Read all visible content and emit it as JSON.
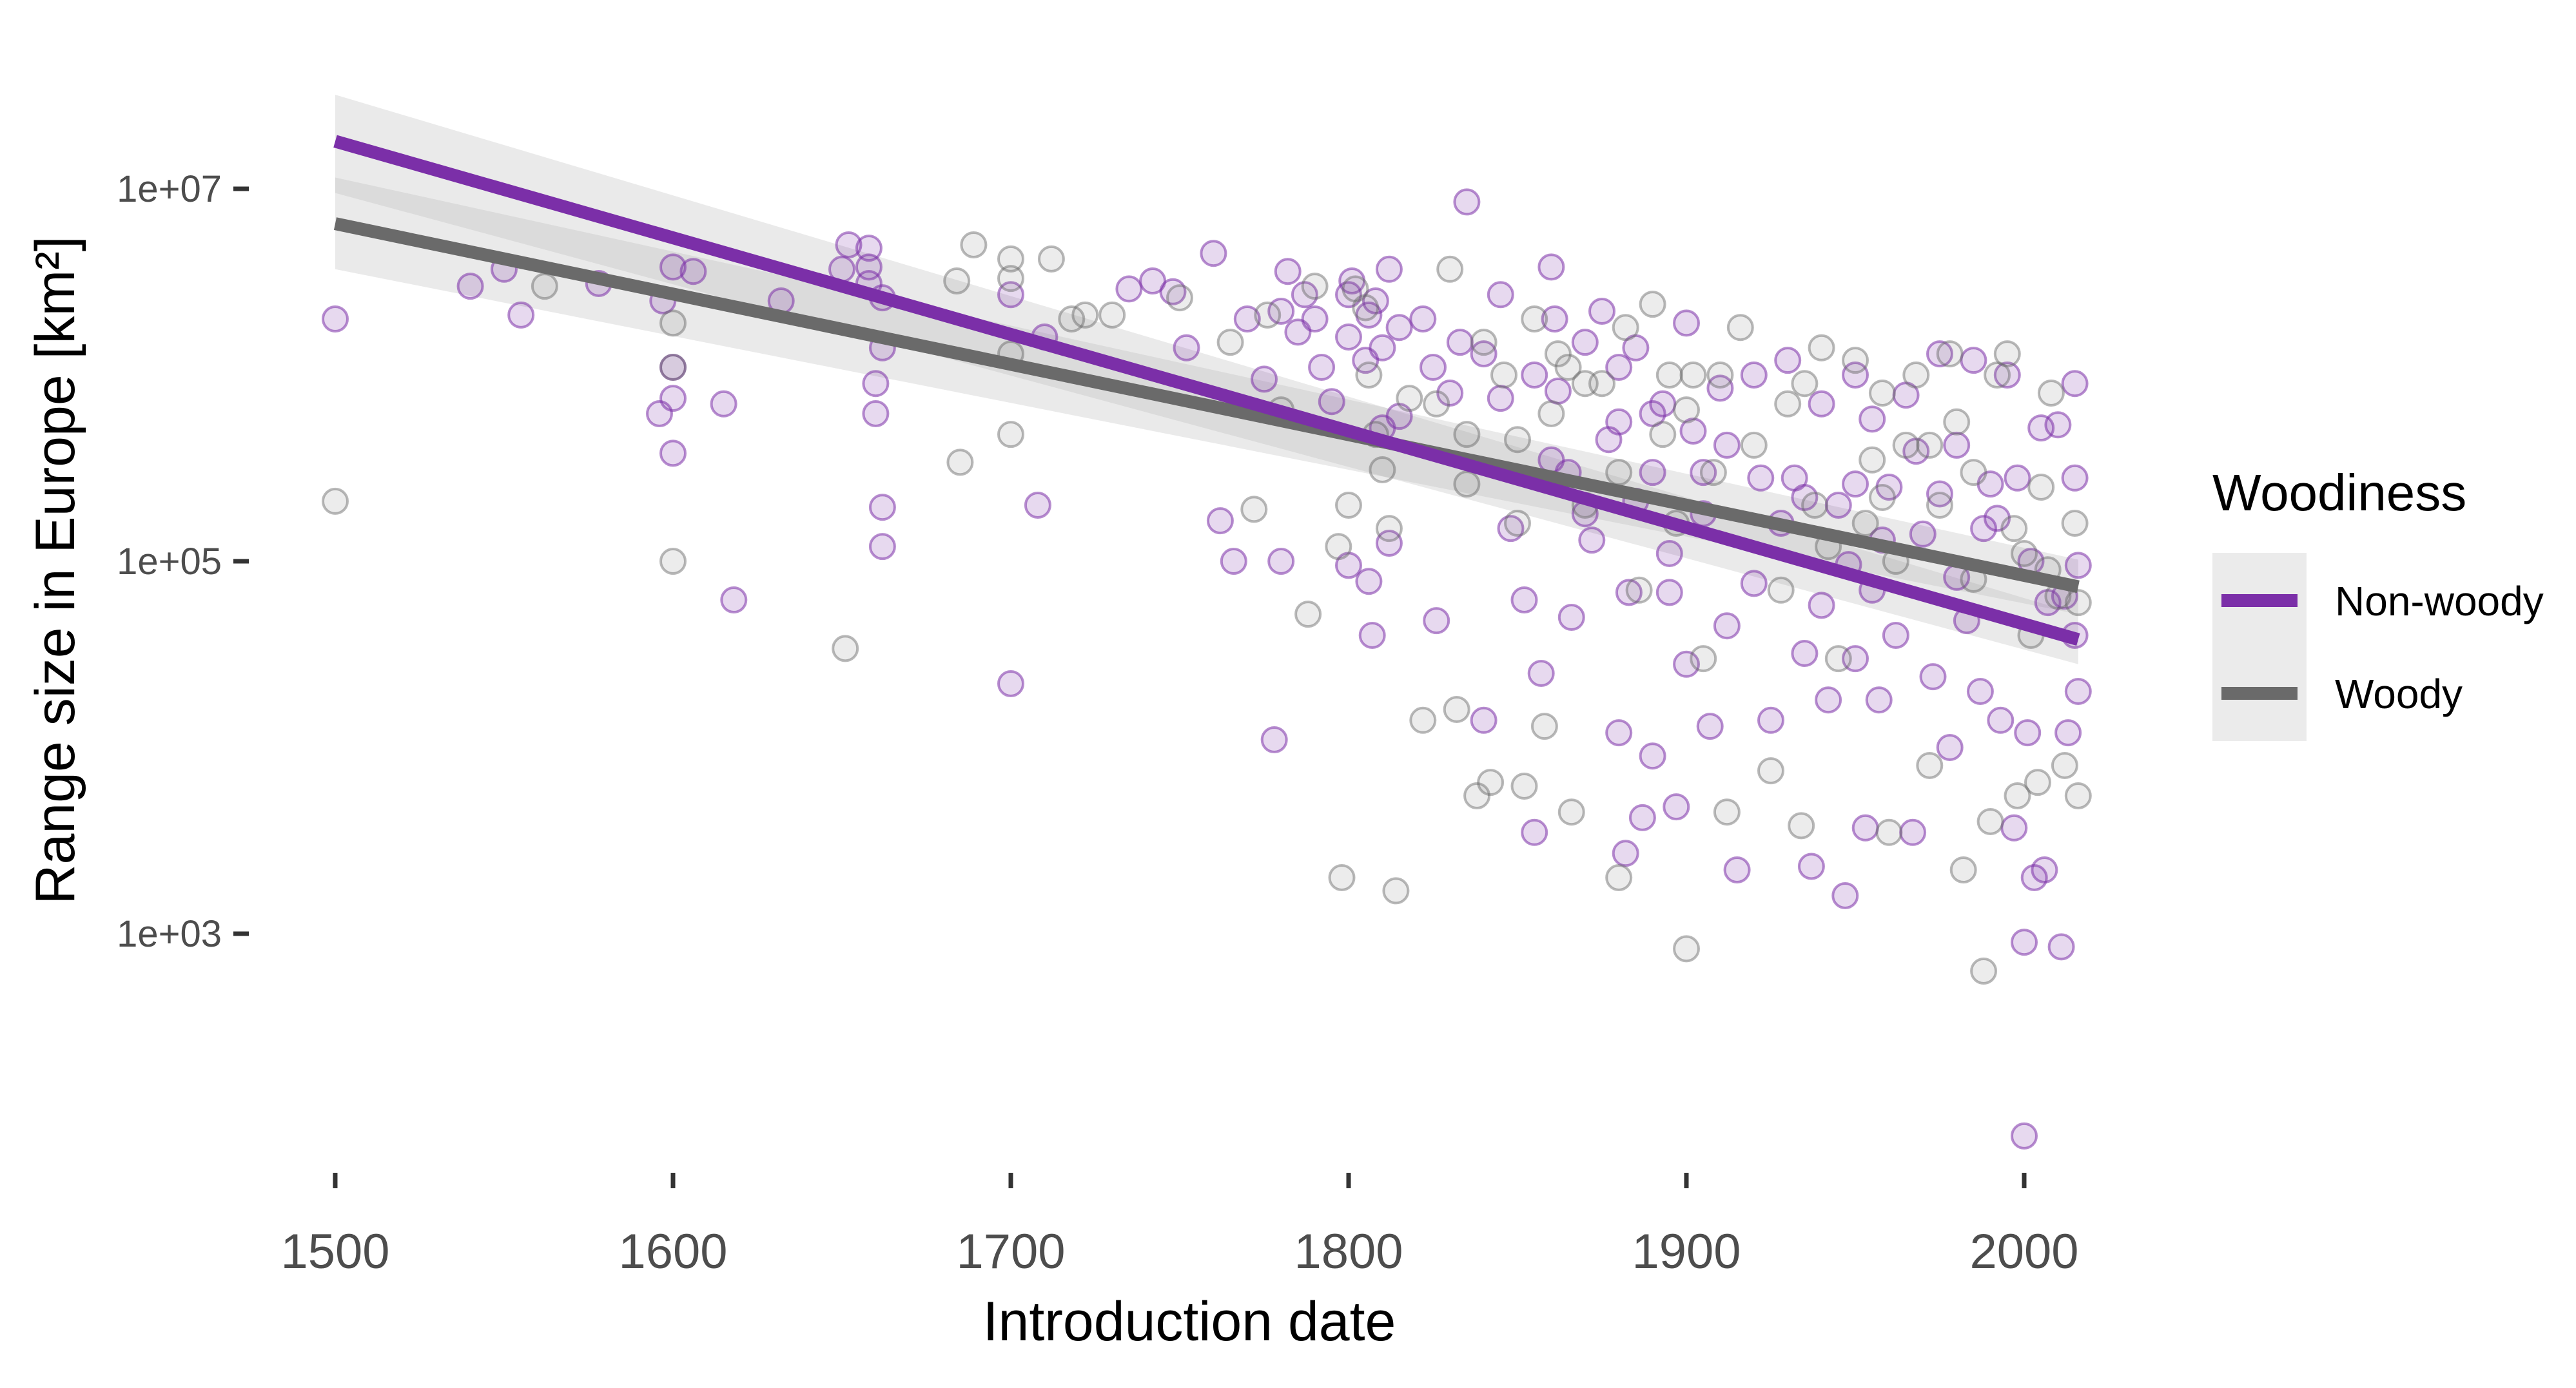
{
  "chart_data": {
    "type": "scatter",
    "title": "",
    "xlabel": "Introduction date",
    "ylabel": "Range size in Europe [km²]",
    "x_ticks": [
      1500,
      1600,
      1700,
      1800,
      1900,
      2000
    ],
    "x_tick_labels": [
      "1500",
      "1600",
      "1700",
      "1800",
      "1900",
      "2000"
    ],
    "y_scale": "log10",
    "y_ticks": [
      1000,
      100000,
      10000000
    ],
    "y_tick_labels": [
      "1e+03",
      "1e+05",
      "1e+07"
    ],
    "xlim": [
      1500,
      2020
    ],
    "ylim": [
      50,
      50000000
    ],
    "grid": false,
    "legend": {
      "title": "Woodiness",
      "position": "right"
    },
    "series": [
      {
        "name": "Non-woody",
        "color": "#7b2fa8",
        "points": [
          [
            1500,
            2000000
          ],
          [
            1540,
            3000000
          ],
          [
            1550,
            3700000
          ],
          [
            1555,
            2100000
          ],
          [
            1578,
            3100000
          ],
          [
            1596,
            620000
          ],
          [
            1597,
            2500000
          ],
          [
            1600,
            380000
          ],
          [
            1600,
            750000
          ],
          [
            1600,
            1100000
          ],
          [
            1600,
            3800000
          ],
          [
            1606,
            3600000
          ],
          [
            1615,
            700000
          ],
          [
            1618,
            62000
          ],
          [
            1632,
            2500000
          ],
          [
            1650,
            3700000
          ],
          [
            1652,
            5000000
          ],
          [
            1658,
            4800000
          ],
          [
            1658,
            3800000
          ],
          [
            1658,
            3100000
          ],
          [
            1660,
            900000
          ],
          [
            1660,
            620000
          ],
          [
            1662,
            2600000
          ],
          [
            1662,
            1400000
          ],
          [
            1662,
            195000
          ],
          [
            1662,
            120000
          ],
          [
            1700,
            22000
          ],
          [
            1700,
            2700000
          ],
          [
            1708,
            200000
          ],
          [
            1710,
            1600000
          ],
          [
            1735,
            2900000
          ],
          [
            1742,
            3200000
          ],
          [
            1748,
            2800000
          ],
          [
            1752,
            1400000
          ],
          [
            1760,
            4500000
          ],
          [
            1762,
            165000
          ],
          [
            1766,
            100000
          ],
          [
            1770,
            2000000
          ],
          [
            1775,
            950000
          ],
          [
            1778,
            11000
          ],
          [
            1780,
            100000
          ],
          [
            1780,
            2200000
          ],
          [
            1782,
            3600000
          ],
          [
            1785,
            1700000
          ],
          [
            1787,
            2700000
          ],
          [
            1790,
            2000000
          ],
          [
            1792,
            1100000
          ],
          [
            1795,
            720000
          ],
          [
            1800,
            2700000
          ],
          [
            1800,
            1600000
          ],
          [
            1800,
            95000
          ],
          [
            1801,
            3200000
          ],
          [
            1805,
            1200000
          ],
          [
            1806,
            2100000
          ],
          [
            1806,
            78000
          ],
          [
            1807,
            40000
          ],
          [
            1808,
            2500000
          ],
          [
            1810,
            1400000
          ],
          [
            1810,
            520000
          ],
          [
            1812,
            3700000
          ],
          [
            1812,
            125000
          ],
          [
            1815,
            1800000
          ],
          [
            1815,
            600000
          ],
          [
            1822,
            2000000
          ],
          [
            1825,
            1100000
          ],
          [
            1826,
            48000
          ],
          [
            1830,
            800000
          ],
          [
            1833,
            1500000
          ],
          [
            1835,
            8500000
          ],
          [
            1840,
            1300000
          ],
          [
            1840,
            14000
          ],
          [
            1845,
            2700000
          ],
          [
            1845,
            750000
          ],
          [
            1848,
            150000
          ],
          [
            1852,
            62000
          ],
          [
            1855,
            1000000
          ],
          [
            1855,
            3500
          ],
          [
            1857,
            25000
          ],
          [
            1860,
            3800000
          ],
          [
            1861,
            2000000
          ],
          [
            1862,
            820000
          ],
          [
            1865,
            300000
          ],
          [
            1866,
            50000
          ],
          [
            1870,
            1500000
          ],
          [
            1872,
            130000
          ],
          [
            1875,
            2200000
          ],
          [
            1877,
            450000
          ],
          [
            1880,
            1100000
          ],
          [
            1880,
            12000
          ],
          [
            1882,
            2700
          ],
          [
            1883,
            68000
          ],
          [
            1885,
            1400000
          ],
          [
            1887,
            4200
          ],
          [
            1890,
            300000
          ],
          [
            1890,
            9000
          ],
          [
            1893,
            700000
          ],
          [
            1895,
            110000
          ],
          [
            1897,
            4800
          ],
          [
            1900,
            1900000
          ],
          [
            1900,
            28000
          ],
          [
            1902,
            500000
          ],
          [
            1905,
            300000
          ],
          [
            1907,
            13000
          ],
          [
            1910,
            850000
          ],
          [
            1912,
            45000
          ],
          [
            1915,
            2200
          ],
          [
            1920,
            1000000
          ],
          [
            1922,
            280000
          ],
          [
            1925,
            14000
          ],
          [
            1930,
            1200000
          ],
          [
            1932,
            280000
          ],
          [
            1935,
            32000
          ],
          [
            1937,
            2300
          ],
          [
            1940,
            700000
          ],
          [
            1942,
            18000
          ],
          [
            1945,
            200000
          ],
          [
            1947,
            1600
          ],
          [
            1950,
            1000000
          ],
          [
            1950,
            260000
          ],
          [
            1950,
            30000
          ],
          [
            1953,
            3700
          ],
          [
            1955,
            580000
          ],
          [
            1957,
            18000
          ],
          [
            1960,
            250000
          ],
          [
            1962,
            40000
          ],
          [
            1965,
            780000
          ],
          [
            1967,
            3500
          ],
          [
            1970,
            140000
          ],
          [
            1973,
            24000
          ],
          [
            1975,
            1300000
          ],
          [
            1978,
            10000
          ],
          [
            1980,
            420000
          ],
          [
            1983,
            48000
          ],
          [
            1985,
            1200000
          ],
          [
            1987,
            20000
          ],
          [
            1990,
            260000
          ],
          [
            1993,
            14000
          ],
          [
            1995,
            1000000
          ],
          [
            1997,
            3700
          ],
          [
            2000,
            900
          ],
          [
            2000,
            82
          ],
          [
            2001,
            12000
          ],
          [
            2003,
            2000
          ],
          [
            2005,
            520000
          ],
          [
            2006,
            2200
          ],
          [
            2007,
            60000
          ],
          [
            2010,
            540000
          ],
          [
            2011,
            850
          ],
          [
            2013,
            12000
          ],
          [
            2015,
            280000
          ],
          [
            2015,
            40000
          ],
          [
            2015,
            900000
          ],
          [
            2016,
            95000
          ],
          [
            2016,
            20000
          ],
          [
            1880,
            560000
          ],
          [
            1890,
            620000
          ],
          [
            1905,
            180000
          ],
          [
            1920,
            76000
          ],
          [
            1935,
            220000
          ],
          [
            1948,
            96000
          ],
          [
            1958,
            130000
          ],
          [
            1968,
            390000
          ],
          [
            1980,
            82000
          ],
          [
            1992,
            170000
          ],
          [
            2002,
            100000
          ],
          [
            2012,
            65000
          ],
          [
            1860,
            350000
          ],
          [
            1870,
            180000
          ],
          [
            1885,
            210000
          ],
          [
            1895,
            68000
          ],
          [
            1912,
            420000
          ],
          [
            1928,
            160000
          ],
          [
            1940,
            58000
          ],
          [
            1955,
            70000
          ],
          [
            1975,
            230000
          ],
          [
            1988,
            150000
          ],
          [
            1998,
            280000
          ]
        ]
      },
      {
        "name": "Woody",
        "color": "#6a6a6a",
        "points": [
          [
            1500,
            210000
          ],
          [
            1562,
            3000000
          ],
          [
            1600,
            100000
          ],
          [
            1600,
            1100000
          ],
          [
            1600,
            1900000
          ],
          [
            1651,
            34000
          ],
          [
            1684,
            3200000
          ],
          [
            1685,
            340000
          ],
          [
            1689,
            5000000
          ],
          [
            1700,
            4200000
          ],
          [
            1700,
            3300000
          ],
          [
            1700,
            1300000
          ],
          [
            1700,
            480000
          ],
          [
            1712,
            4200000
          ],
          [
            1718,
            2000000
          ],
          [
            1722,
            2100000
          ],
          [
            1730,
            2100000
          ],
          [
            1750,
            2600000
          ],
          [
            1765,
            1500000
          ],
          [
            1772,
            190000
          ],
          [
            1776,
            2100000
          ],
          [
            1780,
            650000
          ],
          [
            1788,
            52000
          ],
          [
            1790,
            3000000
          ],
          [
            1797,
            120000
          ],
          [
            1798,
            2000
          ],
          [
            1800,
            200000
          ],
          [
            1802,
            2900000
          ],
          [
            1805,
            2300000
          ],
          [
            1806,
            1000000
          ],
          [
            1808,
            480000
          ],
          [
            1810,
            310000
          ],
          [
            1812,
            150000
          ],
          [
            1814,
            1700
          ],
          [
            1818,
            750000
          ],
          [
            1822,
            14000
          ],
          [
            1826,
            700000
          ],
          [
            1830,
            3700000
          ],
          [
            1832,
            16000
          ],
          [
            1835,
            260000
          ],
          [
            1838,
            5500
          ],
          [
            1840,
            1500000
          ],
          [
            1842,
            6500
          ],
          [
            1846,
            1000000
          ],
          [
            1850,
            450000
          ],
          [
            1852,
            6200
          ],
          [
            1855,
            2000000
          ],
          [
            1858,
            13000
          ],
          [
            1860,
            620000
          ],
          [
            1862,
            1300000
          ],
          [
            1866,
            4500
          ],
          [
            1870,
            200000
          ],
          [
            1875,
            900000
          ],
          [
            1880,
            2000
          ],
          [
            1882,
            1800000
          ],
          [
            1886,
            70000
          ],
          [
            1890,
            2400000
          ],
          [
            1893,
            480000
          ],
          [
            1897,
            160000
          ],
          [
            1900,
            830
          ],
          [
            1902,
            1000000
          ],
          [
            1905,
            30000
          ],
          [
            1910,
            1000000
          ],
          [
            1912,
            4500
          ],
          [
            1916,
            1800000
          ],
          [
            1920,
            420000
          ],
          [
            1925,
            7500
          ],
          [
            1930,
            700000
          ],
          [
            1934,
            3800
          ],
          [
            1938,
            200000
          ],
          [
            1940,
            1400000
          ],
          [
            1945,
            30000
          ],
          [
            1950,
            1200000
          ],
          [
            1953,
            160000
          ],
          [
            1958,
            800000
          ],
          [
            1960,
            3500
          ],
          [
            1965,
            420000
          ],
          [
            1968,
            1000000
          ],
          [
            1972,
            8000
          ],
          [
            1975,
            200000
          ],
          [
            1978,
            1300000
          ],
          [
            1982,
            2200
          ],
          [
            1985,
            300000
          ],
          [
            1988,
            630
          ],
          [
            1990,
            4000
          ],
          [
            1992,
            1000000
          ],
          [
            1995,
            1300000
          ],
          [
            1998,
            5500
          ],
          [
            2000,
            110000
          ],
          [
            2002,
            40000
          ],
          [
            2004,
            6500
          ],
          [
            2005,
            250000
          ],
          [
            2008,
            800000
          ],
          [
            2010,
            65000
          ],
          [
            2012,
            8000
          ],
          [
            2015,
            160000
          ],
          [
            2016,
            5500
          ],
          [
            2016,
            60000
          ],
          [
            1850,
            160000
          ],
          [
            1870,
            900000
          ],
          [
            1880,
            300000
          ],
          [
            1895,
            1000000
          ],
          [
            1908,
            300000
          ],
          [
            1928,
            70000
          ],
          [
            1942,
            120000
          ],
          [
            1955,
            350000
          ],
          [
            1962,
            100000
          ],
          [
            1972,
            420000
          ],
          [
            1985,
            80000
          ],
          [
            1997,
            150000
          ],
          [
            2007,
            90000
          ],
          [
            1835,
            480000
          ],
          [
            1865,
            1100000
          ],
          [
            1900,
            650000
          ],
          [
            1935,
            900000
          ],
          [
            1958,
            220000
          ],
          [
            1980,
            560000
          ]
        ]
      }
    ],
    "fits": [
      {
        "name": "Non-woody",
        "color": "#7b2fa8",
        "x": [
          1500,
          2016
        ],
        "y": [
          18000000,
          38000
        ],
        "ci_low": [
          9500000,
          28000
        ],
        "ci_high": [
          32000000,
          52000
        ]
      },
      {
        "name": "Woody",
        "color": "#6a6a6a",
        "x": [
          1500,
          2016
        ],
        "y": [
          6500000,
          73000
        ],
        "ci_low": [
          3700000,
          52000
        ],
        "ci_high": [
          11500000,
          102000
        ]
      }
    ]
  }
}
